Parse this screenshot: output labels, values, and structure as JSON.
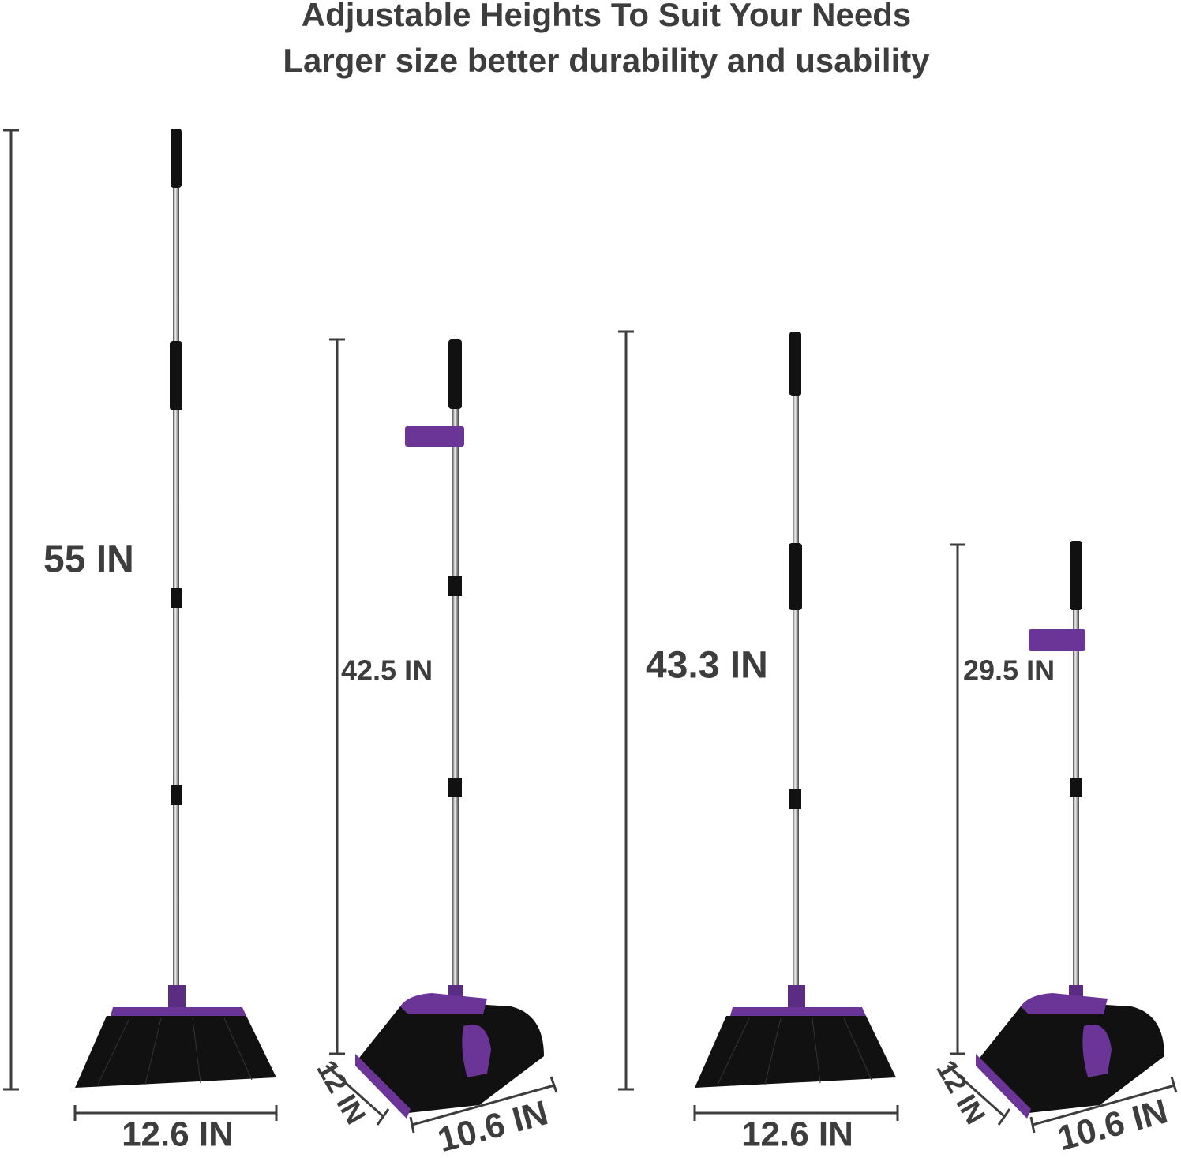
{
  "header": {
    "title": "Adjustable Heights To Suit Your Needs",
    "subtitle": "Larger size better durability and usability"
  },
  "products": [
    {
      "height": "55 IN",
      "width": "12.6 IN"
    },
    {
      "height": "42.5 IN",
      "depth": "12 IN",
      "width": "10.6 IN"
    },
    {
      "height": "43.3 IN",
      "width": "12.6 IN"
    },
    {
      "height": "29.5 IN",
      "depth": "12 IN",
      "width": "10.6 IN"
    }
  ]
}
